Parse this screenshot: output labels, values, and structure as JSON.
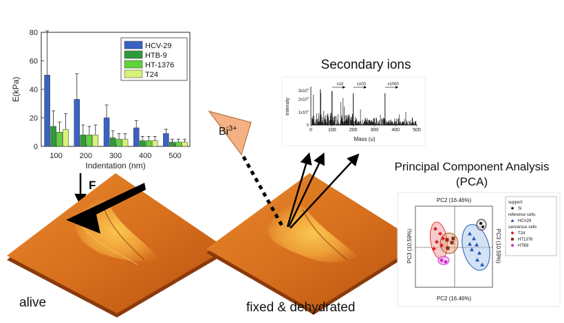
{
  "colors": {
    "hcv29": "#3a62c2",
    "htb9": "#2f9a3a",
    "ht1376": "#5fd33a",
    "t24": "#d6f27a",
    "triangle": "#f4b183",
    "cell_base": "#c2571a"
  },
  "labels": {
    "force": "F",
    "ion": "Bi",
    "ion_charge": "3+",
    "secondary_ions": "Secondary ions",
    "pca_title_line1": "Principal Component Analysis",
    "pca_title_line2": "(PCA)",
    "alive": "alive",
    "fixed": "fixed & dehydrated"
  },
  "modulus_chart": {
    "chart_data": {
      "type": "bar",
      "xlabel": "Indentation (nm)",
      "ylabel": "E(kPa)",
      "categories": [
        "100",
        "200",
        "300",
        "400",
        "500"
      ],
      "ylim": [
        0,
        80
      ],
      "yticks": [
        "0",
        "20",
        "40",
        "60",
        "80"
      ],
      "legend_position": "top-right",
      "series": [
        {
          "name": "HCV-29",
          "values": [
            50,
            33,
            20,
            13,
            9
          ],
          "errors": [
            31,
            18,
            9,
            5,
            3
          ]
        },
        {
          "name": "HTB-9",
          "values": [
            14,
            8,
            6,
            4,
            3
          ],
          "errors": [
            11,
            7,
            5,
            3,
            2
          ]
        },
        {
          "name": "HT-1376",
          "values": [
            10,
            8,
            5,
            4,
            3
          ],
          "errors": [
            7,
            6,
            4,
            3,
            2
          ]
        },
        {
          "name": "T24",
          "values": [
            12,
            8,
            5,
            4,
            3
          ],
          "errors": [
            11,
            7,
            4,
            3,
            2
          ]
        }
      ]
    }
  },
  "spectrum_chart": {
    "chart_data": {
      "type": "line",
      "xlabel": "Mass (u)",
      "ylabel": "Intensity",
      "xlim": [
        0,
        500
      ],
      "ylim": [
        0,
        30000
      ],
      "xticks": [
        "0",
        "100",
        "200",
        "300",
        "400",
        "500"
      ],
      "yticks_base": [
        "0",
        "1x10",
        "2x10",
        "3x10"
      ],
      "ytick_exponent": "4",
      "multiplier_labels": [
        "x10",
        "x100",
        "x1000"
      ]
    }
  },
  "pca_plot": {
    "chart_data": {
      "type": "scatter",
      "top_axis_label": "PC2 (16.46%)",
      "bottom_axis_label": "PC2 (16.46%)",
      "left_axis_label": "PC3 (10.59%)",
      "right_axis_label": "PC3 (10.59%)",
      "legend": {
        "support_header": "support:",
        "support_items": [
          "Si"
        ],
        "reference_header": "reference cells:",
        "reference_items": [
          "HCV29"
        ],
        "cancerous_header": "cancerous cells",
        "cancerous_items": [
          "T24",
          "HT1376",
          "HTB9"
        ]
      }
    }
  }
}
